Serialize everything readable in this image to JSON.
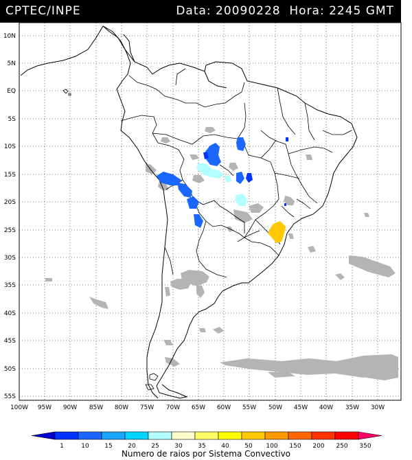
{
  "header": {
    "source": "CPTEC/INPE",
    "info": "Data: 20090228  Hora: 2245 GMT"
  },
  "axes": {
    "lat_labels": [
      "10N",
      "5N",
      "EQ",
      "5S",
      "10S",
      "15S",
      "20S",
      "25S",
      "30S",
      "35S",
      "40S",
      "45S",
      "50S",
      "55S"
    ],
    "lon_labels": [
      "100W",
      "95W",
      "90W",
      "85W",
      "80W",
      "75W",
      "70W",
      "65W",
      "60W",
      "55W",
      "50W",
      "45W",
      "40W",
      "35W",
      "30W"
    ]
  },
  "legend": {
    "caption": "Numero de raios por Sistema Convectivo",
    "levels": [
      "1",
      "10",
      "15",
      "20",
      "25",
      "30",
      "35",
      "40",
      "50",
      "100",
      "150",
      "200",
      "250",
      "350"
    ],
    "colors": [
      "#0000cc",
      "#0033ff",
      "#1a66ff",
      "#1aa6ff",
      "#00d4ff",
      "#b3ffff",
      "#ffffcc",
      "#ffff66",
      "#ffff00",
      "#ffc800",
      "#ff9900",
      "#ff6600",
      "#ff3300",
      "#ff0000",
      "#ff0066"
    ]
  },
  "colors": {
    "cloud_gray": "#b4b4b4",
    "outline": "#000000"
  }
}
